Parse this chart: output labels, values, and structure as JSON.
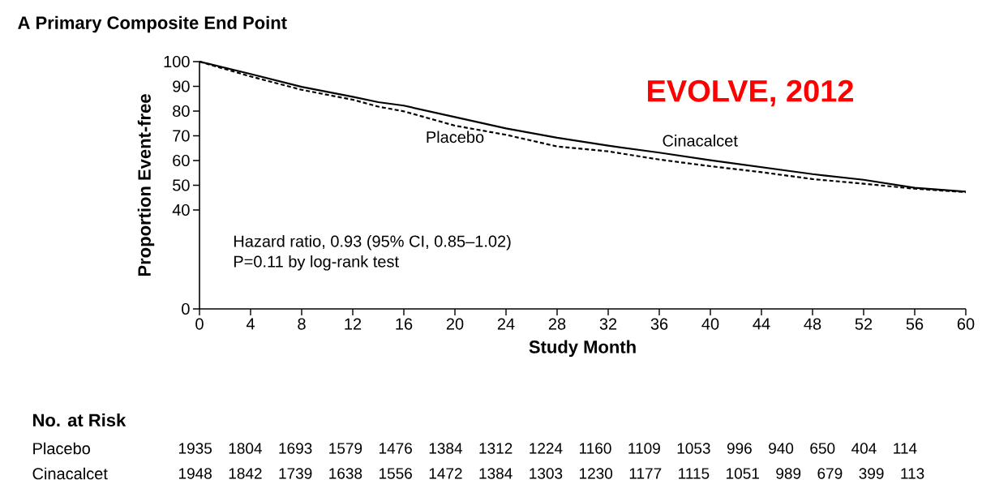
{
  "chart_data": {
    "type": "line",
    "title": "A Primary Composite End Point",
    "xlabel": "Study Month",
    "ylabel": "Proportion Event-free",
    "x": [
      0,
      4,
      8,
      12,
      14,
      16,
      20,
      24,
      28,
      32,
      36,
      40,
      44,
      48,
      52,
      56,
      60
    ],
    "series": [
      {
        "name": "Placebo",
        "color": "#000000",
        "line_style": "dashed",
        "values": [
          100,
          94,
          88.6,
          84.6,
          81.8,
          79.9,
          74.1,
          70.4,
          65.7,
          63.7,
          60.4,
          57.7,
          55.3,
          52.5,
          50.6,
          48.6,
          47.2
        ]
      },
      {
        "name": "Cinacalcet",
        "color": "#000000",
        "line_style": "solid",
        "values": [
          100,
          95,
          89.8,
          85.8,
          83.6,
          82.2,
          77.6,
          73,
          69.2,
          66,
          63.2,
          60.1,
          57.3,
          54.5,
          52.2,
          49,
          47.4
        ]
      }
    ],
    "xlim": [
      0,
      60
    ],
    "xticks": [
      0,
      4,
      8,
      12,
      16,
      20,
      24,
      28,
      32,
      36,
      40,
      44,
      48,
      52,
      56,
      60
    ],
    "ylim": [
      0,
      100
    ],
    "yticks": [
      0,
      40,
      50,
      60,
      70,
      80,
      90,
      100
    ],
    "grid": false,
    "legend": false,
    "marker": "none",
    "annotations": [
      "Hazard ratio, 0.93 (95% CI, 0.85–1.02)",
      "P=0.11 by log-rank test",
      "EVOLVE, 2012",
      "No. at Risk",
      "1935 1804 1693 1579 1476 1384 1312 1224 1160 1109 1053 996 940 650 404 114",
      "1948 1842 1739 1638 1556 1472 1384 1303 1230 1177 1115 1051 989 679 399 113"
    ]
  }
}
